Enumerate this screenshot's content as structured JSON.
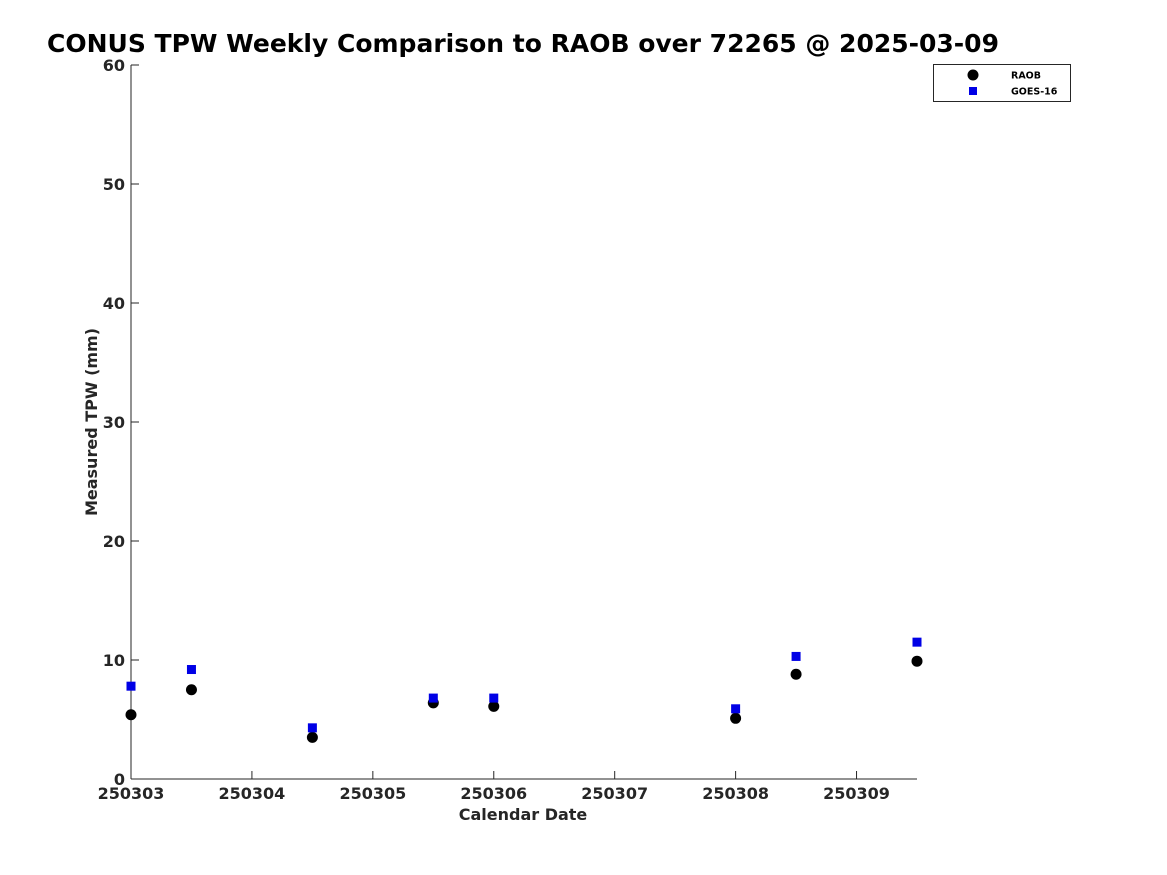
{
  "chart_data": {
    "type": "scatter",
    "title": "CONUS TPW Weekly Comparison to RAOB over 72265 @ 2025-03-09",
    "xlabel": "Calendar Date",
    "ylabel": "Measured TPW (mm)",
    "x_ticks": [
      "250303",
      "250304",
      "250305",
      "250306",
      "250307",
      "250308",
      "250309"
    ],
    "xlim": [
      0,
      6.5
    ],
    "ylim": [
      0,
      60
    ],
    "y_ticks": [
      0,
      10,
      20,
      30,
      40,
      50,
      60
    ],
    "grid": false,
    "legend_position": "top-right",
    "series": [
      {
        "name": "RAOB",
        "marker": "circle",
        "color": "#000000",
        "points": [
          {
            "x": 0.0,
            "y": 5.4
          },
          {
            "x": 0.5,
            "y": 7.5
          },
          {
            "x": 1.5,
            "y": 3.5
          },
          {
            "x": 2.5,
            "y": 6.4
          },
          {
            "x": 3.0,
            "y": 6.1
          },
          {
            "x": 5.0,
            "y": 5.1
          },
          {
            "x": 5.5,
            "y": 8.8
          },
          {
            "x": 6.5,
            "y": 9.9
          }
        ]
      },
      {
        "name": "GOES-16",
        "marker": "square",
        "color": "#0000e6",
        "points": [
          {
            "x": 0.0,
            "y": 7.8
          },
          {
            "x": 0.5,
            "y": 9.2
          },
          {
            "x": 1.5,
            "y": 4.3
          },
          {
            "x": 2.5,
            "y": 6.8
          },
          {
            "x": 3.0,
            "y": 6.8
          },
          {
            "x": 5.0,
            "y": 5.9
          },
          {
            "x": 5.5,
            "y": 10.3
          },
          {
            "x": 6.5,
            "y": 11.5
          }
        ]
      }
    ]
  }
}
